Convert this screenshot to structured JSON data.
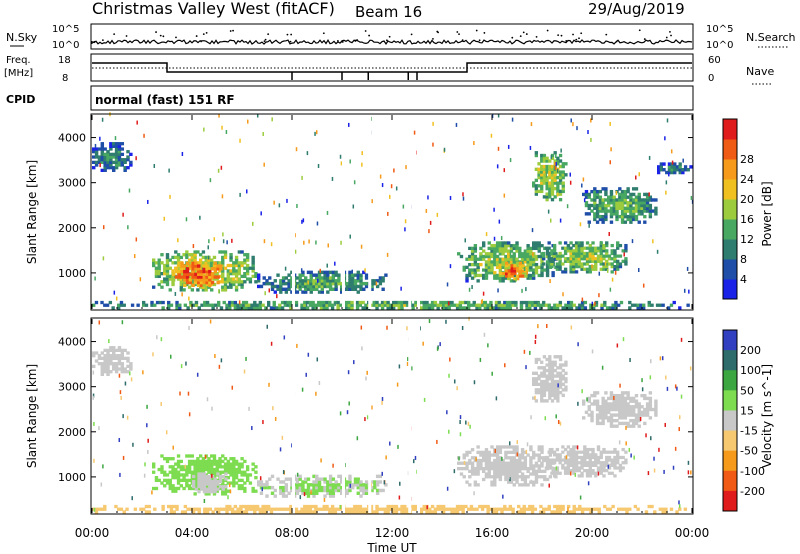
{
  "header": {
    "title": "Christmas Valley West (fitACF)",
    "beam": "Beam 16",
    "date": "29/Aug/2019"
  },
  "top_panels": {
    "nsky_label": "N.Sky",
    "nsky_ticks": [
      "10^5",
      "10^0"
    ],
    "nsearch_label": "N.Search",
    "nsearch_ticks": [
      "10^5",
      "10^0"
    ],
    "freq_label_1": "Freq.",
    "freq_label_2": "[MHz]",
    "freq_ticks": [
      "18",
      "8"
    ],
    "nave_label": "Nave",
    "nave_ticks": [
      "60",
      "0"
    ],
    "cpid_label": "CPID",
    "cpid_text": "normal (fast) 151 RF"
  },
  "colors": {
    "power_scale": [
      "#1a22e8",
      "#1f4ea8",
      "#2e7d6e",
      "#48a862",
      "#9ccc3e",
      "#f0c020",
      "#f59a1a",
      "#ef5a14",
      "#e01b1b"
    ],
    "velocity_scale": [
      "#e01b1b",
      "#f05a14",
      "#f59a1a",
      "#f6c870",
      "#c8c8c8",
      "#7ddc50",
      "#3ca640",
      "#2e6b6b",
      "#3040c0"
    ]
  },
  "chart_data": [
    {
      "type": "heatmap",
      "name": "Power",
      "ylabel": "Slant Range [km]",
      "yticks": [
        "1000",
        "2000",
        "3000",
        "4000"
      ],
      "ylim": [
        200,
        4500
      ],
      "xlim": [
        "00:00",
        "24:00"
      ],
      "colorbar_label": "Power [dB]",
      "colorbar_ticks": [
        "4",
        "8",
        "12",
        "16",
        "20",
        "24",
        "28"
      ],
      "colorbar_range": [
        0,
        32
      ],
      "regions": [
        {
          "t0": 0.0,
          "t1": 1.6,
          "r0": 3250,
          "r1": 3900,
          "level": 10
        },
        {
          "t0": 2.4,
          "t1": 6.6,
          "r0": 600,
          "r1": 1500,
          "level": 18
        },
        {
          "t0": 3.2,
          "t1": 5.2,
          "r0": 700,
          "r1": 1250,
          "level": 27
        },
        {
          "t0": 6.6,
          "t1": 11.8,
          "r0": 550,
          "r1": 1050,
          "level": 12
        },
        {
          "t0": 14.6,
          "t1": 18.6,
          "r0": 800,
          "r1": 1700,
          "level": 16
        },
        {
          "t0": 16.3,
          "t1": 17.4,
          "r0": 850,
          "r1": 1250,
          "level": 26
        },
        {
          "t0": 18.0,
          "t1": 21.4,
          "r0": 1000,
          "r1": 1700,
          "level": 16
        },
        {
          "t0": 17.6,
          "t1": 19.0,
          "r0": 2600,
          "r1": 3700,
          "level": 17
        },
        {
          "t0": 19.6,
          "t1": 22.6,
          "r0": 2100,
          "r1": 2900,
          "level": 14
        },
        {
          "t0": 22.6,
          "t1": 24.0,
          "r0": 3200,
          "r1": 3450,
          "level": 10
        },
        {
          "t0": 0.0,
          "t1": 24.0,
          "r0": 200,
          "r1": 380,
          "level": 14
        }
      ]
    },
    {
      "type": "heatmap",
      "name": "Velocity",
      "ylabel": "Slant Range [km]",
      "yticks": [
        "1000",
        "2000",
        "3000",
        "4000"
      ],
      "ylim": [
        200,
        4500
      ],
      "xlim": [
        "00:00",
        "24:00"
      ],
      "xticks": [
        "00:00",
        "04:00",
        "08:00",
        "12:00",
        "16:00",
        "20:00",
        "00:00"
      ],
      "xlabel": "Time UT",
      "colorbar_label": "Velocity [m s^-1]",
      "colorbar_ticks": [
        "200",
        "100",
        "50",
        "15",
        "-15",
        "-50",
        "-100",
        "-200"
      ],
      "colorbar_range": [
        -250,
        250
      ],
      "regions": [
        {
          "t0": 0.0,
          "t1": 1.6,
          "r0": 3250,
          "r1": 3900,
          "level": 0
        },
        {
          "t0": 2.4,
          "t1": 6.6,
          "r0": 600,
          "r1": 1500,
          "level": 40
        },
        {
          "t0": 4.0,
          "t1": 5.4,
          "r0": 650,
          "r1": 1100,
          "level": 0
        },
        {
          "t0": 6.6,
          "t1": 11.8,
          "r0": 550,
          "r1": 1050,
          "level": 30
        },
        {
          "t0": 14.6,
          "t1": 18.6,
          "r0": 800,
          "r1": 1700,
          "level": 0
        },
        {
          "t0": 18.0,
          "t1": 21.4,
          "r0": 1000,
          "r1": 1700,
          "level": 0
        },
        {
          "t0": 17.6,
          "t1": 19.0,
          "r0": 2600,
          "r1": 3700,
          "level": 0
        },
        {
          "t0": 19.6,
          "t1": 22.6,
          "r0": 2100,
          "r1": 2900,
          "level": 0
        },
        {
          "t0": 0.0,
          "t1": 24.0,
          "r0": 200,
          "r1": 380,
          "level": -60
        }
      ]
    }
  ]
}
